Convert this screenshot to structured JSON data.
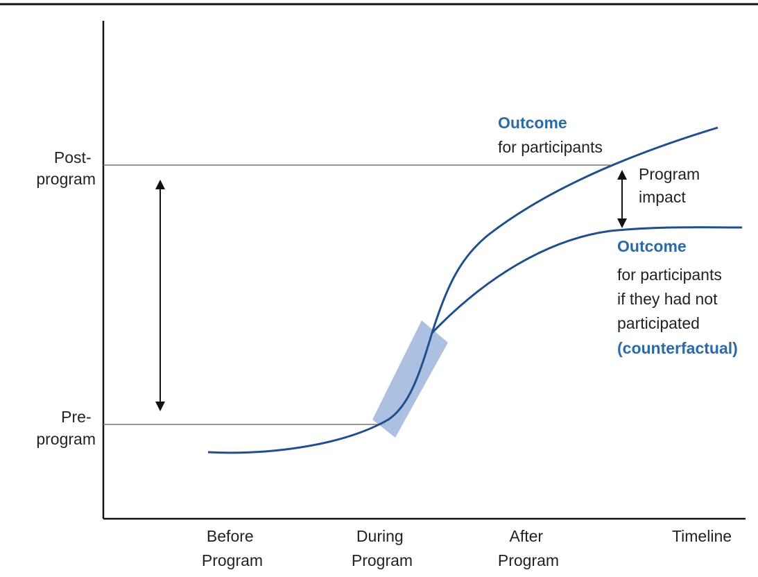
{
  "colors": {
    "curve": "#1f4f8c",
    "highlight_band": "#9db5dc",
    "reference_lines": "#777777",
    "axes": "#111111",
    "accent_text": "#2a6aa8"
  },
  "y_labels": {
    "post": [
      "Post-",
      "program"
    ],
    "pre": [
      "Pre-",
      "program"
    ]
  },
  "x_labels": {
    "before": [
      "Before",
      "Program"
    ],
    "during": [
      "During",
      "Program"
    ],
    "after": [
      "After",
      "Program"
    ],
    "timeline": "Timeline"
  },
  "participants_label": {
    "title": "Outcome",
    "line1": "for participants"
  },
  "impact_label": [
    "Program",
    "impact"
  ],
  "counterfactual_label": {
    "title": "Outcome",
    "line1": "for participants",
    "line2": "if they had not",
    "line3": "participated",
    "counterfactual_word": "(counterfactual)"
  }
}
